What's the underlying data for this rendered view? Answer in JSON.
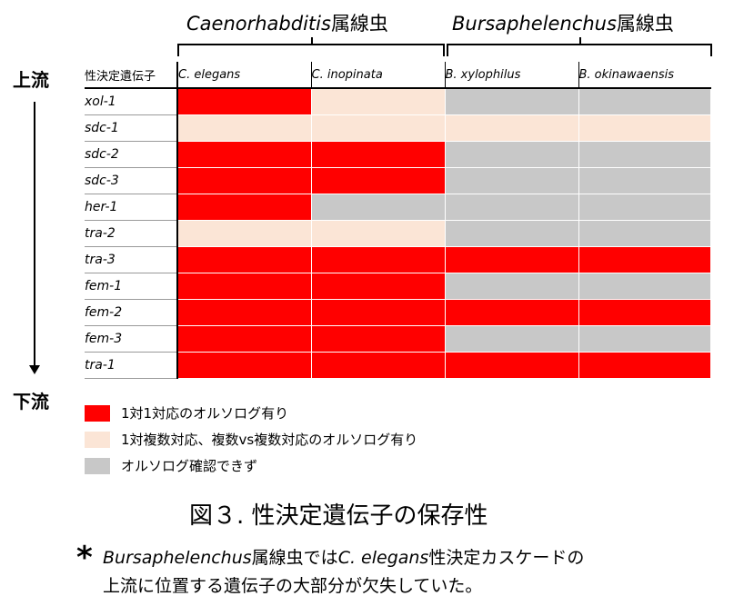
{
  "genera": [
    {
      "name_italic": "Caenorhabditis",
      "suffix": "属線虫"
    },
    {
      "name_italic": "Bursaphelenchus",
      "suffix": "属線虫"
    }
  ],
  "flow": {
    "top": "上流",
    "bottom": "下流"
  },
  "chart_data": {
    "type": "heatmap",
    "corner_label": "性決定遺伝子",
    "columns": [
      "C. elegans",
      "C. inopinata",
      "B. xylophilus",
      "B. okinawaensis"
    ],
    "rows": [
      "xol-1",
      "sdc-1",
      "sdc-2",
      "sdc-3",
      "her-1",
      "tra-2",
      "tra-3",
      "fem-1",
      "fem-2",
      "fem-3",
      "tra-1"
    ],
    "categories": {
      "one_to_one": {
        "label": "1対1対応のオルソログ有り",
        "color": "#ff0000"
      },
      "many": {
        "label": "1対複数対応、複数vs複数対応のオルソログ有り",
        "color": "#fbe5d6"
      },
      "none": {
        "label": "オルソログ確認できず",
        "color": "#c8c8c8"
      }
    },
    "legend_order": [
      "one_to_one",
      "many",
      "none"
    ],
    "values": [
      [
        "one_to_one",
        "many",
        "none",
        "none"
      ],
      [
        "many",
        "many",
        "many",
        "many"
      ],
      [
        "one_to_one",
        "one_to_one",
        "none",
        "none"
      ],
      [
        "one_to_one",
        "one_to_one",
        "none",
        "none"
      ],
      [
        "one_to_one",
        "none",
        "none",
        "none"
      ],
      [
        "many",
        "many",
        "none",
        "none"
      ],
      [
        "one_to_one",
        "one_to_one",
        "one_to_one",
        "one_to_one"
      ],
      [
        "one_to_one",
        "one_to_one",
        "none",
        "none"
      ],
      [
        "one_to_one",
        "one_to_one",
        "one_to_one",
        "one_to_one"
      ],
      [
        "one_to_one",
        "one_to_one",
        "none",
        "none"
      ],
      [
        "one_to_one",
        "one_to_one",
        "one_to_one",
        "one_to_one"
      ]
    ]
  },
  "figure_title": "図３. 性決定遺伝子の保存性",
  "note": {
    "star": "*",
    "line1_italic_a": "Bursaphelenchus",
    "line1_text_a": "属線虫では",
    "line1_italic_b": "C. elegans",
    "line1_text_b": "性決定カスケードの",
    "line2": "上流に位置する遺伝子の大部分が欠失していた。"
  }
}
